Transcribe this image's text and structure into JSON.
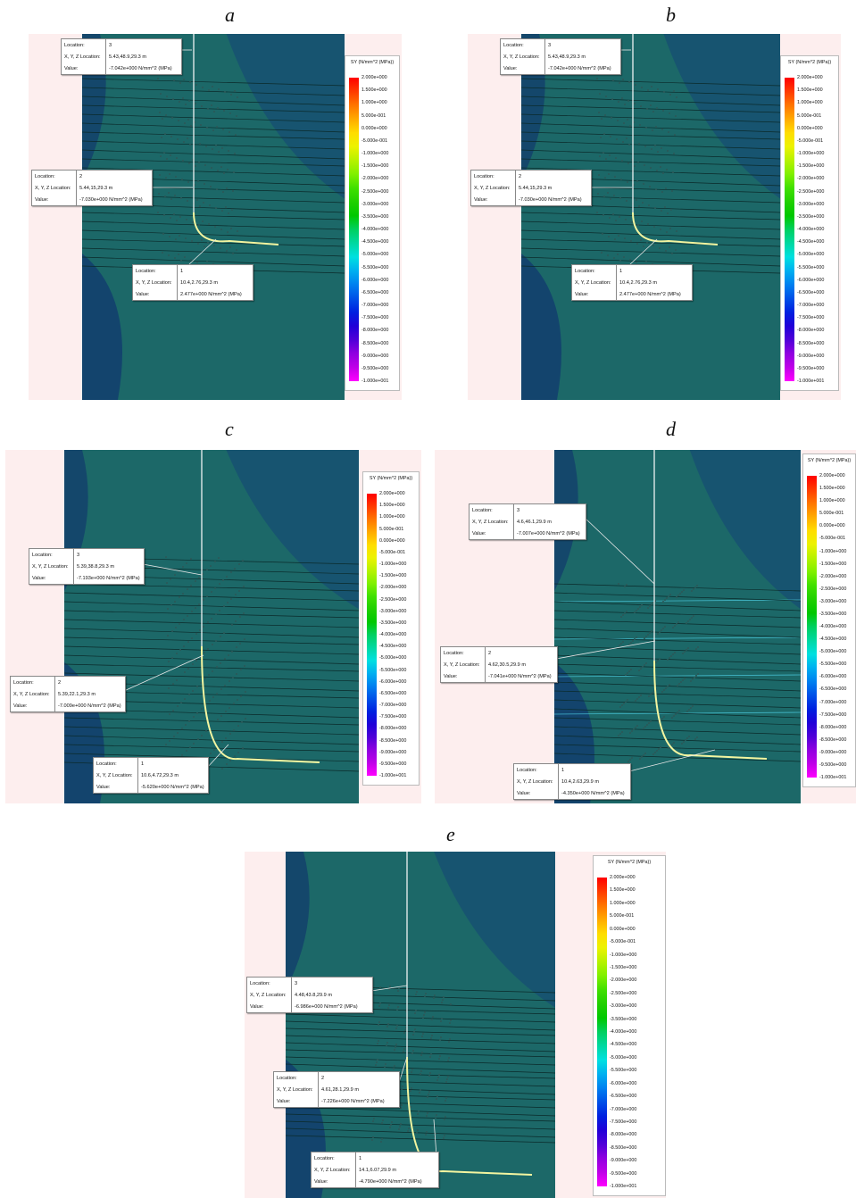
{
  "panel_labels": [
    "a",
    "b",
    "c",
    "d",
    "e"
  ],
  "legend": {
    "title": "SY (N/mm^2 (MPa))",
    "ticks": [
      "2.000e+000",
      "1.500e+000",
      "1.000e+000",
      "5.000e-001",
      "0.000e+000",
      "-5.000e-001",
      "-1.000e+000",
      "-1.500e+000",
      "-2.000e+000",
      "-2.500e+000",
      "-3.000e+000",
      "-3.500e+000",
      "-4.000e+000",
      "-4.500e+000",
      "-5.000e+000",
      "-5.500e+000",
      "-6.000e+000",
      "-6.500e+000",
      "-7.000e+000",
      "-7.500e+000",
      "-8.000e+000",
      "-8.500e+000",
      "-9.000e+000",
      "-9.500e+000",
      "-1.000e+001"
    ],
    "colors": [
      "#ff0000",
      "#ff3a00",
      "#ff7500",
      "#ffaa00",
      "#ffdd00",
      "#ecf200",
      "#b6f200",
      "#80f000",
      "#40e000",
      "#20d000",
      "#00c800",
      "#00d060",
      "#00d8a0",
      "#00e0e0",
      "#00b0f0",
      "#0080f0",
      "#0050e8",
      "#0020e0",
      "#2000d8",
      "#5000d8",
      "#9000e0",
      "#c000e8",
      "#ff00ff"
    ],
    "field_color": "#1c6868"
  },
  "row_labels": {
    "location": "Location:",
    "xyz": "X, Y, Z Location:",
    "value": "Value:"
  },
  "panels": [
    {
      "label": "a",
      "probes": [
        {
          "location": "3",
          "xyz": "5.43,48.9,29.3 m",
          "value": "-7.042e+000 N/mm^2 (MPa)"
        },
        {
          "location": "2",
          "xyz": "5.44,15,29.3 m",
          "value": "-7.030e+000 N/mm^2 (MPa)"
        },
        {
          "location": "1",
          "xyz": "10.4,2.76,29.3 m",
          "value": "2.477e+000 N/mm^2 (MPa)"
        }
      ]
    },
    {
      "label": "b",
      "probes": [
        {
          "location": "3",
          "xyz": "5.43,48.9,29.3 m",
          "value": "-7.042e+000 N/mm^2 (MPa)"
        },
        {
          "location": "2",
          "xyz": "5.44,15,29.3 m",
          "value": "-7.030e+000 N/mm^2 (MPa)"
        },
        {
          "location": "1",
          "xyz": "10.4,2.76,29.3 m",
          "value": "2.477e+000 N/mm^2 (MPa)"
        }
      ]
    },
    {
      "label": "c",
      "probes": [
        {
          "location": "3",
          "xyz": "5.39,38.8,29.3 m",
          "value": "-7.193e+000 N/mm^2 (MPa)"
        },
        {
          "location": "2",
          "xyz": "5.39,22.1,29.3 m",
          "value": "-7.009e+000 N/mm^2 (MPa)"
        },
        {
          "location": "1",
          "xyz": "10.6,4.72,29.3 m",
          "value": "-5.620e+000 N/mm^2 (MPa)"
        }
      ]
    },
    {
      "label": "d",
      "probes": [
        {
          "location": "3",
          "xyz": "4.6,46.1,29.9 m",
          "value": "-7.007e+000 N/mm^2 (MPa)"
        },
        {
          "location": "2",
          "xyz": "4.62,30.5,29.9 m",
          "value": "-7.041e+000 N/mm^2 (MPa)"
        },
        {
          "location": "1",
          "xyz": "10.4,2.63,29.9 m",
          "value": "-4.350e+000 N/mm^2 (MPa)"
        }
      ]
    },
    {
      "label": "e",
      "probes": [
        {
          "location": "3",
          "xyz": "4.48,43.8,29.9 m",
          "value": "-6.986e+000 N/mm^2 (MPa)"
        },
        {
          "location": "2",
          "xyz": "4.61,28.1,29.9 m",
          "value": "-7.226e+000 N/mm^2 (MPa)"
        },
        {
          "location": "1",
          "xyz": "14.1,6.07,29.9 m",
          "value": "-4.790e+000 N/mm^2 (MPa)"
        }
      ]
    }
  ]
}
